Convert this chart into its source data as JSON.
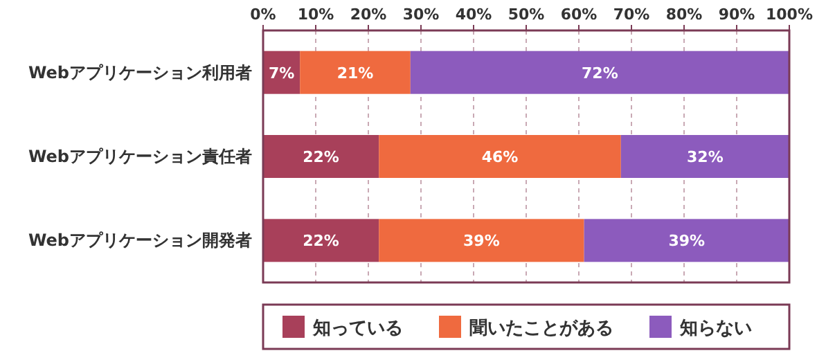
{
  "chart_data": {
    "type": "bar",
    "orientation": "horizontal",
    "stacked": true,
    "categories": [
      "Webアプリケーション利用者",
      "Webアプリケーション責任者",
      "Webアプリケーション開発者"
    ],
    "series": [
      {
        "name": "知っている",
        "color": "#a8405a",
        "values": [
          7,
          22,
          22
        ],
        "value_labels": [
          "7%",
          "22%",
          "22%"
        ]
      },
      {
        "name": "聞いたことがある",
        "color": "#ef6a3f",
        "values": [
          21,
          46,
          39
        ],
        "value_labels": [
          "21%",
          "46%",
          "39%"
        ]
      },
      {
        "name": "知らない",
        "color": "#8c5bbd",
        "values": [
          72,
          32,
          39
        ],
        "value_labels": [
          "72%",
          "32%",
          "39%"
        ]
      }
    ],
    "xlim": [
      0,
      100
    ],
    "xticks": [
      {
        "value": 0,
        "label": "0%"
      },
      {
        "value": 10,
        "label": "10%"
      },
      {
        "value": 20,
        "label": "20%"
      },
      {
        "value": 30,
        "label": "30%"
      },
      {
        "value": 40,
        "label": "40%"
      },
      {
        "value": 50,
        "label": "50%"
      },
      {
        "value": 60,
        "label": "60%"
      },
      {
        "value": 70,
        "label": "70%"
      },
      {
        "value": 80,
        "label": "80%"
      },
      {
        "value": 90,
        "label": "90%"
      },
      {
        "value": 100,
        "label": "100%"
      }
    ],
    "grid": "x",
    "legend": "bottom"
  }
}
